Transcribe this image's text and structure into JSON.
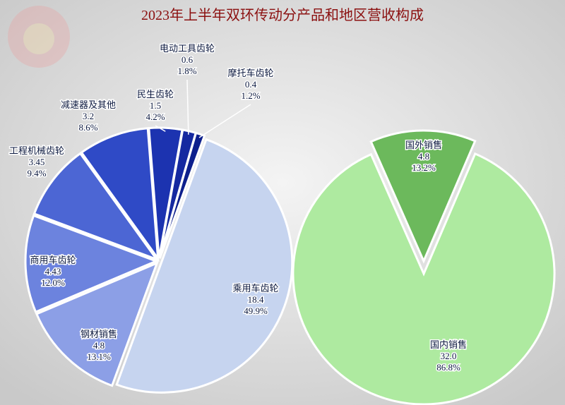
{
  "chart_data": [
    {
      "type": "pie",
      "title": "2023年上半年双环传动分产品和地区营收构成",
      "categories": [
        "乘用车齿轮",
        "钢材销售",
        "商用车齿轮",
        "工程机械齿轮",
        "减速器及其他",
        "民生齿轮",
        "电动工具齿轮",
        "摩托车齿轮"
      ],
      "values": [
        18.4,
        4.8,
        4.43,
        3.45,
        3.2,
        1.5,
        0.6,
        0.4
      ],
      "percent_labels": [
        "49.9%",
        "13.1%",
        "12.0%",
        "9.4%",
        "8.6%",
        "4.2%",
        "1.8%",
        "1.2%"
      ],
      "colors": [
        "#c6d4ef",
        "#8c9fe6",
        "#6c83de",
        "#4c66d4",
        "#2f4ac6",
        "#1c33b0",
        "#1529a0",
        "#0d1f8c"
      ]
    },
    {
      "type": "pie",
      "categories": [
        "国外销售",
        "国内销售"
      ],
      "values": [
        4.8,
        32
      ],
      "value_labels": [
        "4.8",
        "32.0"
      ],
      "percent_labels": [
        "13.2%",
        "86.8%"
      ],
      "colors": [
        "#6cb95c",
        "#aeeaa0"
      ]
    }
  ]
}
